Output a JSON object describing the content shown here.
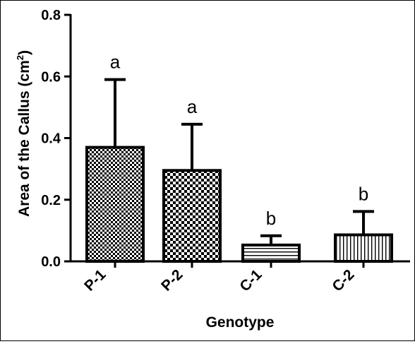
{
  "chart_data": {
    "type": "bar",
    "categories": [
      "P-1",
      "P-2",
      "C-1",
      "C-2"
    ],
    "values": [
      0.37,
      0.295,
      0.053,
      0.086
    ],
    "error_plus": [
      0.22,
      0.15,
      0.03,
      0.076
    ],
    "significance": [
      "a",
      "a",
      "b",
      "b"
    ],
    "patterns": [
      "dense-checker",
      "checker",
      "horizontal-stripes",
      "vertical-stripes"
    ],
    "xlabel": "Genotype",
    "ylabel": "Area of the Callus (cm",
    "ylabel_sup": "2",
    "ylabel_close": ")",
    "ylim": [
      0,
      0.8
    ],
    "yticks": [
      "0.0",
      "0.2",
      "0.4",
      "0.6",
      "0.8"
    ],
    "ytick_values": [
      0,
      0.2,
      0.4,
      0.6,
      0.8
    ],
    "grid": false,
    "bar_edge_color": "#000000",
    "bar_fill_color": "#ffffff"
  }
}
